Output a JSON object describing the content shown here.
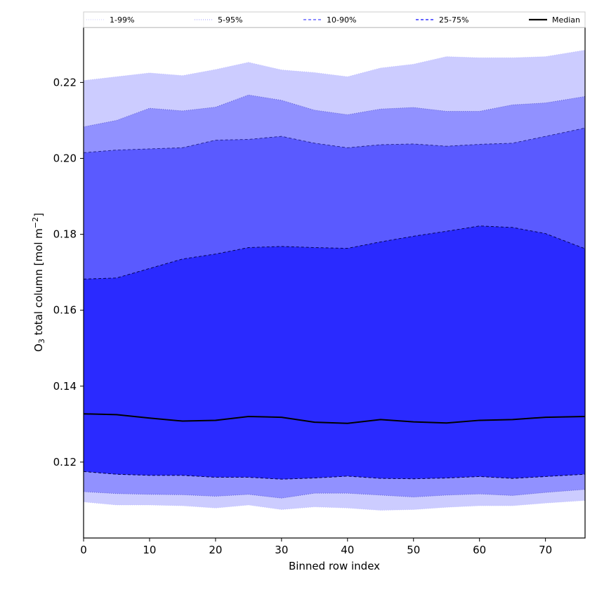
{
  "chart_data": {
    "type": "area",
    "title": "",
    "xlabel": "Binned row index",
    "ylabel_main": "O",
    "ylabel_sub": "3",
    "ylabel_rest": " total column [mol m",
    "ylabel_sup": "−2",
    "ylabel_end": "]",
    "xlim": [
      0,
      76
    ],
    "ylim": [
      0.1,
      0.2345
    ],
    "xticks": [
      0,
      10,
      20,
      30,
      40,
      50,
      60,
      70
    ],
    "yticks": [
      0.12,
      0.14,
      0.16,
      0.18,
      0.2,
      0.22
    ],
    "ytick_labels": [
      "0.12",
      "0.14",
      "0.16",
      "0.18",
      "0.20",
      "0.22"
    ],
    "grid": false,
    "legend_position": "top, outside plot, single row",
    "legend": [
      {
        "label": "1-99%",
        "color": "#ccccff",
        "style": "dotted"
      },
      {
        "label": "5-95%",
        "color": "#9999ff",
        "style": "dotted"
      },
      {
        "label": "10-90%",
        "color": "#6666ff",
        "style": "dashed"
      },
      {
        "label": "25-75%",
        "color": "#3333ff",
        "style": "dashed"
      },
      {
        "label": "Median",
        "color": "#000000",
        "style": "solid"
      }
    ],
    "band_colors": {
      "p1_99": "#ccccff",
      "p5_95": "#9191ff",
      "p10_90": "#5a5aff",
      "p25_75": "#2a2aff",
      "median": "#000000"
    },
    "x": [
      0,
      5,
      10,
      15,
      20,
      25,
      30,
      35,
      40,
      45,
      50,
      55,
      60,
      65,
      70,
      76
    ],
    "series": [
      {
        "name": "1-99%",
        "upper": [
          0.2205,
          0.2215,
          0.2225,
          0.2218,
          0.2234,
          0.2253,
          0.2233,
          0.2226,
          0.2215,
          0.2238,
          0.2248,
          0.2268,
          0.2265,
          0.2265,
          0.2268,
          0.2285
        ],
        "lower": [
          0.1095,
          0.1087,
          0.1087,
          0.1085,
          0.1079,
          0.1087,
          0.1075,
          0.1082,
          0.1079,
          0.1073,
          0.1075,
          0.1081,
          0.1085,
          0.1085,
          0.1092,
          0.1099
        ]
      },
      {
        "name": "5-95%",
        "upper": [
          0.2083,
          0.21,
          0.2132,
          0.2125,
          0.2135,
          0.2167,
          0.2153,
          0.2127,
          0.2115,
          0.213,
          0.2134,
          0.2124,
          0.2124,
          0.2141,
          0.2146,
          0.2163
        ],
        "lower": [
          0.1122,
          0.1117,
          0.1115,
          0.1114,
          0.111,
          0.1115,
          0.1105,
          0.1118,
          0.1118,
          0.1113,
          0.1108,
          0.1113,
          0.1116,
          0.1112,
          0.112,
          0.1128
        ]
      },
      {
        "name": "10-90%",
        "upper": [
          0.2015,
          0.2022,
          0.2025,
          0.2028,
          0.2048,
          0.205,
          0.2058,
          0.204,
          0.2028,
          0.2036,
          0.2038,
          0.2032,
          0.2037,
          0.204,
          0.2058,
          0.208
        ],
        "lower": [
          0.1175,
          0.1168,
          0.1165,
          0.1165,
          0.116,
          0.116,
          0.1155,
          0.1158,
          0.1163,
          0.1157,
          0.1156,
          0.1158,
          0.1162,
          0.1157,
          0.1162,
          0.1168
        ]
      },
      {
        "name": "25-75%",
        "upper": [
          0.1682,
          0.1685,
          0.171,
          0.1735,
          0.1748,
          0.1765,
          0.1768,
          0.1765,
          0.1763,
          0.178,
          0.1795,
          0.1808,
          0.1822,
          0.1818,
          0.1802,
          0.1762
        ],
        "lower": [
          0.1175,
          0.1168,
          0.1165,
          0.1165,
          0.116,
          0.116,
          0.1155,
          0.1158,
          0.1163,
          0.1157,
          0.1156,
          0.1158,
          0.1162,
          0.1157,
          0.1162,
          0.1168
        ]
      },
      {
        "name": "Median",
        "values": [
          0.1327,
          0.1325,
          0.1316,
          0.1308,
          0.131,
          0.132,
          0.1318,
          0.1305,
          0.1302,
          0.1312,
          0.1306,
          0.1303,
          0.131,
          0.1312,
          0.1318,
          0.132
        ]
      }
    ]
  }
}
